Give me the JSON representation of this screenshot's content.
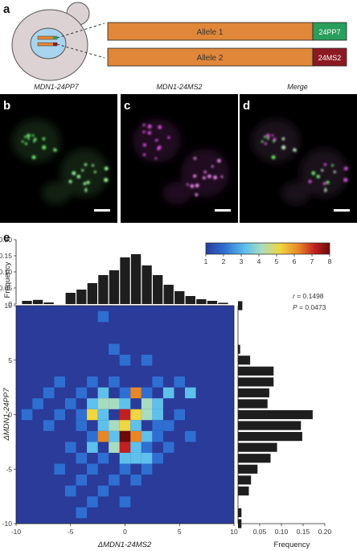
{
  "panels": {
    "a": "a",
    "b": "b",
    "c": "c",
    "d": "d",
    "e": "e"
  },
  "schematic": {
    "alleles": [
      {
        "label": "Allele 1",
        "tag": "24PP7",
        "tag_color": "#2a9e5c",
        "bar_color": "#e0873a"
      },
      {
        "label": "Allele 2",
        "tag": "24MS2",
        "tag_color": "#8c1a24",
        "bar_color": "#e0873a"
      }
    ]
  },
  "micrographs": [
    {
      "title": "MDN1-24PP7",
      "channel": "green"
    },
    {
      "title": "MDN1-24MS2",
      "channel": "magenta"
    },
    {
      "title": "Merge",
      "channel": "merge"
    }
  ],
  "colorbar": {
    "ticks": [
      "1",
      "2",
      "3",
      "4",
      "5",
      "6",
      "7",
      "8"
    ],
    "min": 1,
    "max": 8
  },
  "stats": {
    "r": "r = 0.1498",
    "P": "P = 0.0473"
  },
  "chart_data": [
    {
      "type": "bar",
      "name": "top-histogram",
      "ylabel": "Frequency",
      "y_ticks": [
        "0.20",
        "0.15",
        "0.10",
        "0.05",
        "0"
      ],
      "ylim": [
        0,
        0.2
      ],
      "x": [
        -9,
        -8,
        -7,
        -6,
        -5,
        -4,
        -3,
        -2,
        -1,
        0,
        1,
        2,
        3,
        4,
        5,
        6,
        7,
        8,
        9
      ],
      "values": [
        0.01,
        0.013,
        0.005,
        0,
        0.035,
        0.045,
        0.065,
        0.09,
        0.105,
        0.145,
        0.155,
        0.12,
        0.09,
        0.06,
        0.04,
        0.025,
        0.015,
        0.01,
        0.004
      ]
    },
    {
      "type": "heatmap",
      "name": "joint-heatmap",
      "xlabel": "ΔMDN1-24MS2",
      "ylabel": "ΔMDN1-24PP7",
      "x_ticks": [
        "-10",
        "-5",
        "0",
        "5",
        "10"
      ],
      "y_ticks": [
        "10",
        "5",
        "0",
        "-5",
        "-10"
      ],
      "xlim": [
        -10,
        10
      ],
      "ylim": [
        -10,
        10
      ],
      "cells": [
        [
          -2,
          9,
          2
        ],
        [
          -1,
          6,
          2
        ],
        [
          0,
          5,
          2
        ],
        [
          2,
          5,
          2
        ],
        [
          -6,
          3,
          2
        ],
        [
          -3,
          3,
          2
        ],
        [
          -1,
          3,
          2
        ],
        [
          3,
          3,
          2
        ],
        [
          5,
          3,
          2
        ],
        [
          -7,
          2,
          2
        ],
        [
          -4,
          2,
          2
        ],
        [
          -2,
          2,
          3
        ],
        [
          0,
          2,
          2
        ],
        [
          1,
          2,
          6
        ],
        [
          2,
          2,
          2
        ],
        [
          4,
          2,
          3
        ],
        [
          6,
          2,
          3
        ],
        [
          -8,
          1,
          2
        ],
        [
          -5,
          1,
          2
        ],
        [
          -3,
          1,
          3
        ],
        [
          -2,
          1,
          4
        ],
        [
          -1,
          1,
          4
        ],
        [
          0,
          1,
          3
        ],
        [
          2,
          1,
          4
        ],
        [
          3,
          1,
          3
        ],
        [
          -9,
          0,
          2
        ],
        [
          -6,
          0,
          2
        ],
        [
          -4,
          0,
          2
        ],
        [
          -3,
          0,
          5
        ],
        [
          -2,
          0,
          3
        ],
        [
          0,
          0,
          7
        ],
        [
          1,
          0,
          5
        ],
        [
          2,
          0,
          4
        ],
        [
          3,
          0,
          3
        ],
        [
          5,
          0,
          2
        ],
        [
          -7,
          -1,
          2
        ],
        [
          -4,
          -1,
          2
        ],
        [
          -2,
          -1,
          3
        ],
        [
          -1,
          -1,
          4
        ],
        [
          0,
          -1,
          5
        ],
        [
          1,
          -1,
          3
        ],
        [
          3,
          -1,
          2
        ],
        [
          4,
          -1,
          2
        ],
        [
          -3,
          -2,
          2
        ],
        [
          -2,
          -2,
          6
        ],
        [
          -1,
          -2,
          3
        ],
        [
          0,
          -2,
          8
        ],
        [
          1,
          -2,
          6
        ],
        [
          2,
          -2,
          3
        ],
        [
          3,
          -2,
          2
        ],
        [
          6,
          -2,
          2
        ],
        [
          -5,
          -3,
          2
        ],
        [
          -3,
          -3,
          3
        ],
        [
          -1,
          -3,
          4
        ],
        [
          0,
          -3,
          7
        ],
        [
          1,
          -3,
          3
        ],
        [
          2,
          -3,
          2
        ],
        [
          4,
          -3,
          2
        ],
        [
          -4,
          -4,
          2
        ],
        [
          -2,
          -4,
          2
        ],
        [
          0,
          -4,
          3
        ],
        [
          1,
          -4,
          3
        ],
        [
          2,
          -4,
          3
        ],
        [
          3,
          -4,
          2
        ],
        [
          -6,
          -5,
          2
        ],
        [
          -3,
          -5,
          2
        ],
        [
          0,
          -5,
          2
        ],
        [
          2,
          -5,
          2
        ],
        [
          -4,
          -6,
          2
        ],
        [
          -1,
          -6,
          2
        ],
        [
          1,
          -6,
          2
        ],
        [
          -5,
          -7,
          2
        ],
        [
          -2,
          -7,
          2
        ],
        [
          -3,
          -8,
          2
        ],
        [
          0,
          -8,
          2
        ],
        [
          -4,
          -9,
          2
        ]
      ]
    },
    {
      "type": "bar",
      "name": "right-histogram",
      "xlabel": "Frequency",
      "x_ticks": [
        "0.05",
        "0.10",
        "0.15",
        "0.20"
      ],
      "xlim": [
        0,
        0.2
      ],
      "y": [
        10,
        9,
        8,
        7,
        6,
        5,
        4,
        3,
        2,
        1,
        0,
        -1,
        -2,
        -3,
        -4,
        -5,
        -6,
        -7,
        -8,
        -9,
        -10
      ],
      "values": [
        0.01,
        0,
        0,
        0,
        0.005,
        0.028,
        0.082,
        0.082,
        0.072,
        0.068,
        0.172,
        0.145,
        0.148,
        0.09,
        0.075,
        0.045,
        0.03,
        0.025,
        0,
        0.008,
        0.008
      ]
    }
  ]
}
